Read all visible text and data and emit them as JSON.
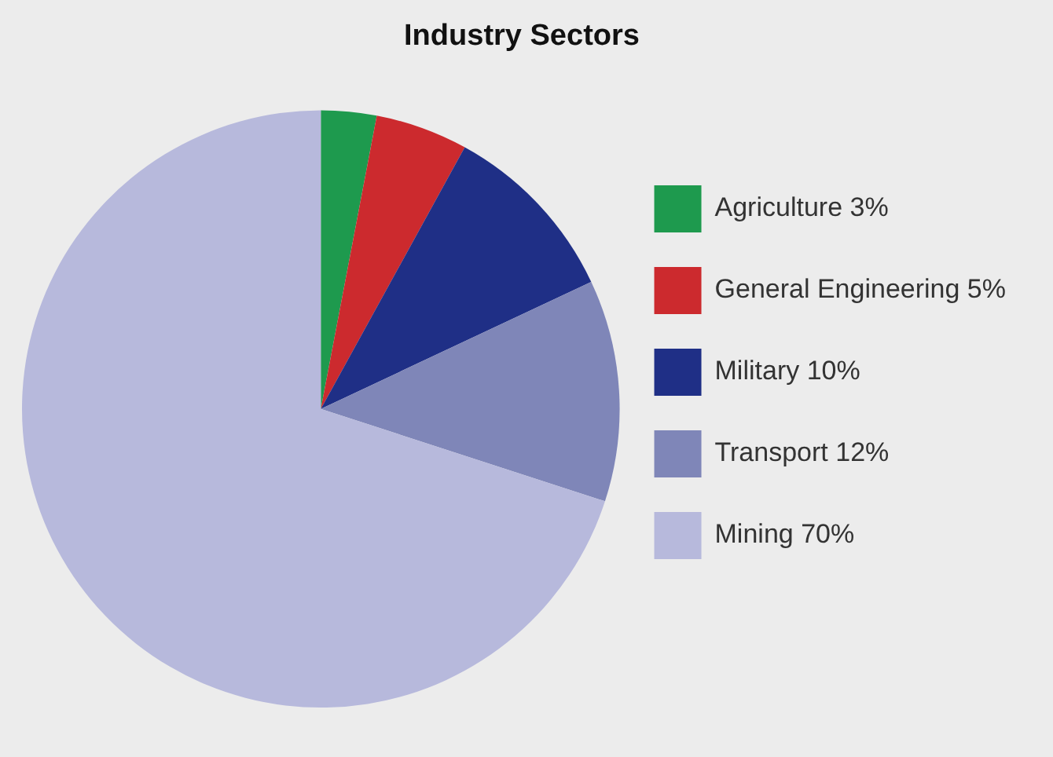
{
  "chart_data": {
    "type": "pie",
    "title": "Industry Sectors",
    "categories": [
      "Agriculture 3%",
      "General Engineering 5%",
      "Military 10%",
      "Transport 12%",
      "Mining 70%"
    ],
    "values": [
      3,
      5,
      10,
      12,
      70
    ],
    "colors": [
      "#1e9a4e",
      "#cc2a2e",
      "#1f2f86",
      "#7f86b8",
      "#b7b9dc"
    ],
    "legend": "right"
  }
}
